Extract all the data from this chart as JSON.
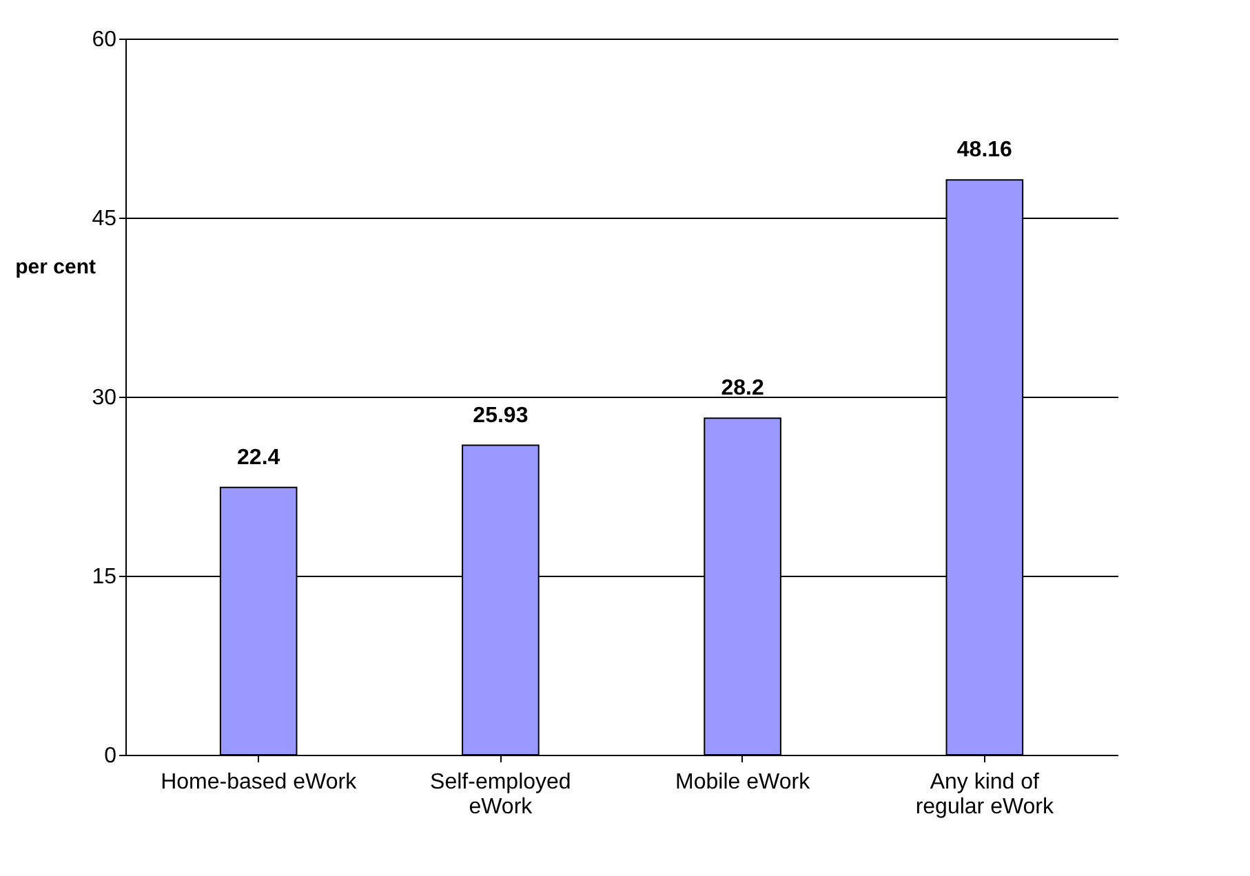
{
  "chart_data": {
    "type": "bar",
    "ylabel": "per cent",
    "categories": [
      "Home-based eWork",
      "Self-employed eWork",
      "Mobile eWork",
      "Any kind of regular eWork"
    ],
    "values": [
      22.4,
      25.93,
      28.2,
      48.16
    ],
    "color": "#9999ff",
    "ylim": [
      0,
      60
    ],
    "yticks": [
      0,
      15,
      30,
      45,
      60
    ],
    "grid": "y",
    "data_labels": true
  }
}
